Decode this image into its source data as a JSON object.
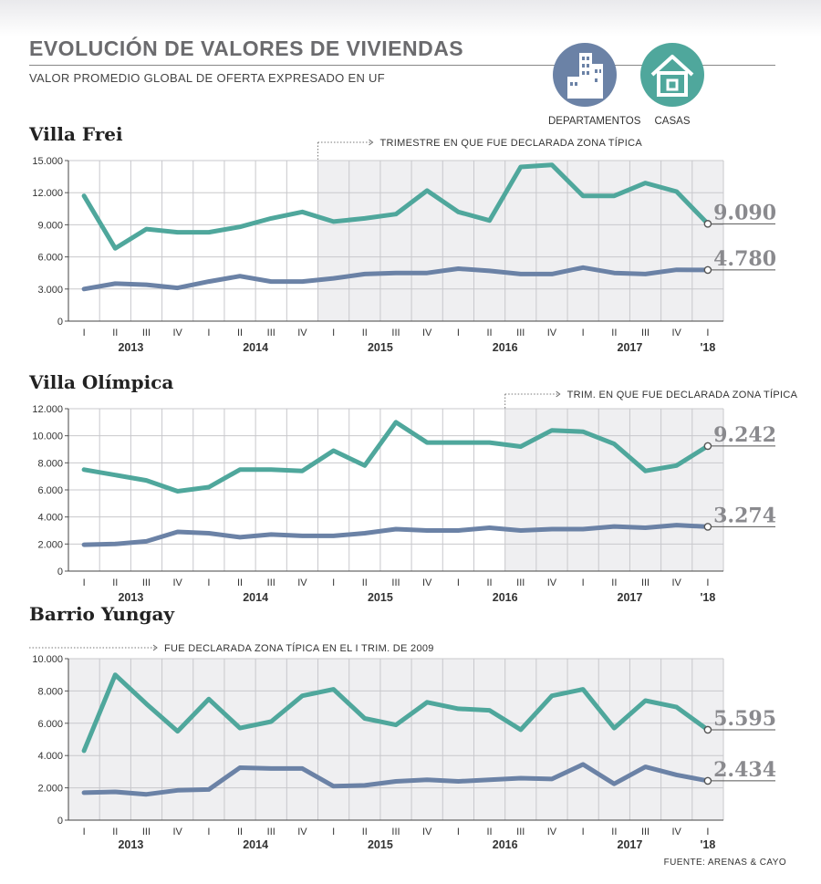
{
  "header": {
    "title": "EVOLUCIÓN DE VALORES DE VIVIENDAS",
    "subtitle": "VALOR PROMEDIO GLOBAL DE OFERTA EXPRESADO EN UF"
  },
  "legend": [
    {
      "label": "DEPARTAMENTOS",
      "icon": "building-icon",
      "color": "#6b82a6"
    },
    {
      "label": "CASAS",
      "icon": "house-icon",
      "color": "#4fa79c"
    }
  ],
  "colors": {
    "casas": "#4fa79c",
    "departamentos": "#6b82a6",
    "shade": "#efeff1",
    "grid": "#c8c8cc"
  },
  "source": "FUENTE: ARENAS & CAYO",
  "chart_data": [
    {
      "type": "line",
      "title": "Villa Frei",
      "note": "TRIMESTRE EN QUE FUE DECLARADA ZONA TÍPICA",
      "highlight_from": 8,
      "ylim": [
        0,
        15000
      ],
      "yticks": [
        0,
        3000,
        6000,
        9000,
        12000,
        15000
      ],
      "ytick_labels": [
        "0",
        "3.000",
        "6.000",
        "9.000",
        "12.000",
        "15.000"
      ],
      "x": [
        "I",
        "II",
        "III",
        "IV",
        "I",
        "II",
        "III",
        "IV",
        "I",
        "II",
        "III",
        "IV",
        "I",
        "II",
        "III",
        "IV",
        "I",
        "II",
        "III",
        "IV",
        "I"
      ],
      "years": [
        {
          "label": "2013",
          "at": 1.5
        },
        {
          "label": "2014",
          "at": 5.5
        },
        {
          "label": "2015",
          "at": 9.5
        },
        {
          "label": "2016",
          "at": 13.5
        },
        {
          "label": "2017",
          "at": 17.5
        },
        {
          "label": "'18",
          "at": 20
        }
      ],
      "series": [
        {
          "key": "casas",
          "values": [
            11700,
            6800,
            8600,
            8300,
            8300,
            8800,
            9600,
            10200,
            9300,
            9600,
            10000,
            12200,
            10200,
            9400,
            14400,
            14600,
            11700,
            11700,
            12900,
            12100,
            9090
          ],
          "end_label": "9.090"
        },
        {
          "key": "departamentos",
          "values": [
            3000,
            3500,
            3400,
            3100,
            3700,
            4200,
            3700,
            3700,
            4000,
            4400,
            4500,
            4500,
            4900,
            4700,
            4400,
            4400,
            5000,
            4500,
            4400,
            4800,
            4780
          ],
          "end_label": "4.780"
        }
      ]
    },
    {
      "type": "line",
      "title": "Villa Olímpica",
      "note": "TRIM. EN QUE FUE DECLARADA ZONA TÍPICA",
      "highlight_from": 14,
      "ylim": [
        0,
        12000
      ],
      "yticks": [
        0,
        2000,
        4000,
        6000,
        8000,
        10000,
        12000
      ],
      "ytick_labels": [
        "0",
        "2.000",
        "4.000",
        "6.000",
        "8.000",
        "10.000",
        "12.000"
      ],
      "x": [
        "I",
        "II",
        "III",
        "IV",
        "I",
        "II",
        "III",
        "IV",
        "I",
        "II",
        "III",
        "IV",
        "I",
        "II",
        "III",
        "IV",
        "I",
        "II",
        "III",
        "IV",
        "I"
      ],
      "years": [
        {
          "label": "2013",
          "at": 1.5
        },
        {
          "label": "2014",
          "at": 5.5
        },
        {
          "label": "2015",
          "at": 9.5
        },
        {
          "label": "2016",
          "at": 13.5
        },
        {
          "label": "2017",
          "at": 17.5
        },
        {
          "label": "'18",
          "at": 20
        }
      ],
      "series": [
        {
          "key": "casas",
          "values": [
            7500,
            7100,
            6700,
            5900,
            6200,
            7500,
            7500,
            7400,
            8900,
            7800,
            11000,
            9500,
            9500,
            9500,
            9200,
            10400,
            10300,
            9400,
            7400,
            7800,
            9242
          ],
          "end_label": "9.242"
        },
        {
          "key": "departamentos",
          "values": [
            1950,
            2000,
            2200,
            2900,
            2800,
            2500,
            2700,
            2600,
            2600,
            2800,
            3100,
            3000,
            3000,
            3200,
            3000,
            3100,
            3100,
            3300,
            3200,
            3400,
            3274
          ],
          "end_label": "3.274"
        }
      ]
    },
    {
      "type": "line",
      "title": "Barrio Yungay",
      "note": "FUE DECLARADA ZONA TÍPICA EN EL I TRIM. DE 2009",
      "highlight_from": 0,
      "ylim": [
        0,
        10000
      ],
      "yticks": [
        0,
        2000,
        4000,
        6000,
        8000,
        10000
      ],
      "ytick_labels": [
        "0",
        "2.000",
        "4.000",
        "6.000",
        "8.000",
        "10.000"
      ],
      "x": [
        "I",
        "II",
        "III",
        "IV",
        "I",
        "II",
        "III",
        "IV",
        "I",
        "II",
        "III",
        "IV",
        "I",
        "II",
        "III",
        "IV",
        "I",
        "II",
        "III",
        "IV",
        "I"
      ],
      "years": [
        {
          "label": "2013",
          "at": 1.5
        },
        {
          "label": "2014",
          "at": 5.5
        },
        {
          "label": "2015",
          "at": 9.5
        },
        {
          "label": "2016",
          "at": 13.5
        },
        {
          "label": "2017",
          "at": 17.5
        },
        {
          "label": "'18",
          "at": 20
        }
      ],
      "series": [
        {
          "key": "casas",
          "values": [
            4300,
            9000,
            7200,
            5500,
            7500,
            5700,
            6100,
            7700,
            8100,
            6300,
            5900,
            7300,
            6900,
            6800,
            5600,
            7700,
            8100,
            5700,
            7400,
            7000,
            5595
          ],
          "end_label": "5.595"
        },
        {
          "key": "departamentos",
          "values": [
            1700,
            1750,
            1600,
            1850,
            1900,
            3250,
            3200,
            3200,
            2100,
            2150,
            2400,
            2500,
            2400,
            2500,
            2600,
            2550,
            3450,
            2250,
            3300,
            2800,
            2434
          ],
          "end_label": "2.434"
        }
      ]
    }
  ]
}
